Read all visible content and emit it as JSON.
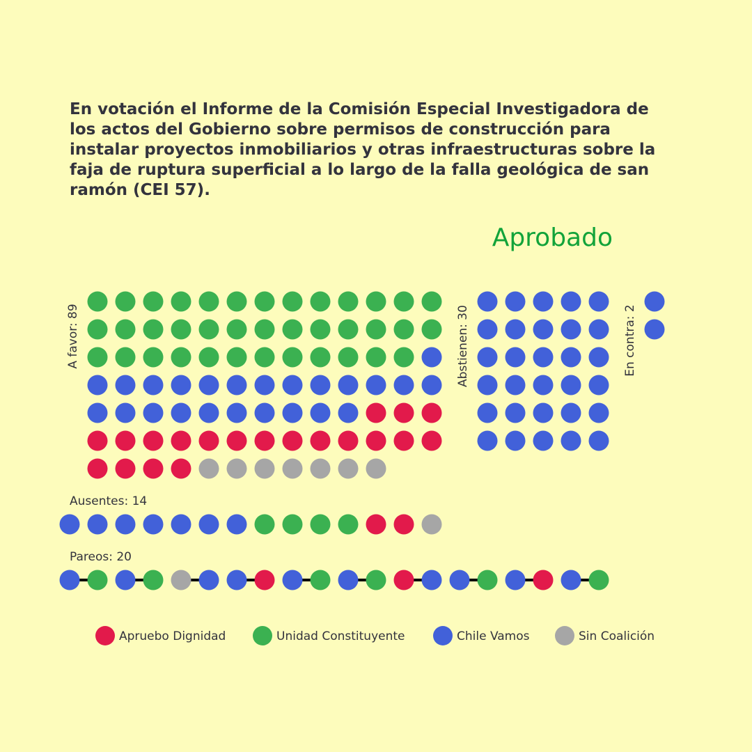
{
  "title_lines": [
    "En votación el Informe de la Comisión Especial Investigadora de",
    "los actos del Gobierno sobre permisos de construcción para",
    "instalar proyectos inmobiliarios y otras infraestructuras sobre la",
    "faja de ruptura superficial a lo largo de la falla geológica de san",
    "ramón (CEI 57)."
  ],
  "result": "Aprobado",
  "colors": {
    "background": "#fdfcbc",
    "apruebo_dignidad": "#e21a4b",
    "unidad_constituyente": "#3bb151",
    "chile_vamos": "#4261d9",
    "sin_coalicion": "#a6a6a6",
    "result": "#12a33a",
    "text": "#33333d"
  },
  "chart_data": {
    "type": "waffle",
    "legend": [
      {
        "key": "AD",
        "label": "Apruebo Dignidad"
      },
      {
        "key": "UC",
        "label": "Unidad Constituyente"
      },
      {
        "key": "CV",
        "label": "Chile Vamos"
      },
      {
        "key": "SC",
        "label": "Sin Coalición"
      }
    ],
    "groups": [
      {
        "id": "a_favor",
        "label": "A favor: 89",
        "count": 89,
        "composition": {
          "UC": 38,
          "CV": 24,
          "AD": 20,
          "SC": 7
        }
      },
      {
        "id": "abstienen",
        "label": "Abstienen: 30",
        "count": 30,
        "composition": {
          "CV": 30
        }
      },
      {
        "id": "en_contra",
        "label": "En contra: 2",
        "count": 2,
        "composition": {
          "CV": 2
        }
      },
      {
        "id": "ausentes",
        "label": "Ausentes: 14",
        "count": 14,
        "composition": {
          "CV": 7,
          "UC": 4,
          "AD": 2,
          "SC": 1
        }
      },
      {
        "id": "pareos",
        "label": "Pareos: 20",
        "count": 20,
        "pairs": [
          [
            "CV",
            "UC"
          ],
          [
            "CV",
            "UC"
          ],
          [
            "SC",
            "CV"
          ],
          [
            "CV",
            "AD"
          ],
          [
            "CV",
            "UC"
          ],
          [
            "CV",
            "UC"
          ],
          [
            "AD",
            "CV"
          ],
          [
            "CV",
            "UC"
          ],
          [
            "CV",
            "AD"
          ],
          [
            "CV",
            "UC"
          ]
        ]
      }
    ]
  }
}
